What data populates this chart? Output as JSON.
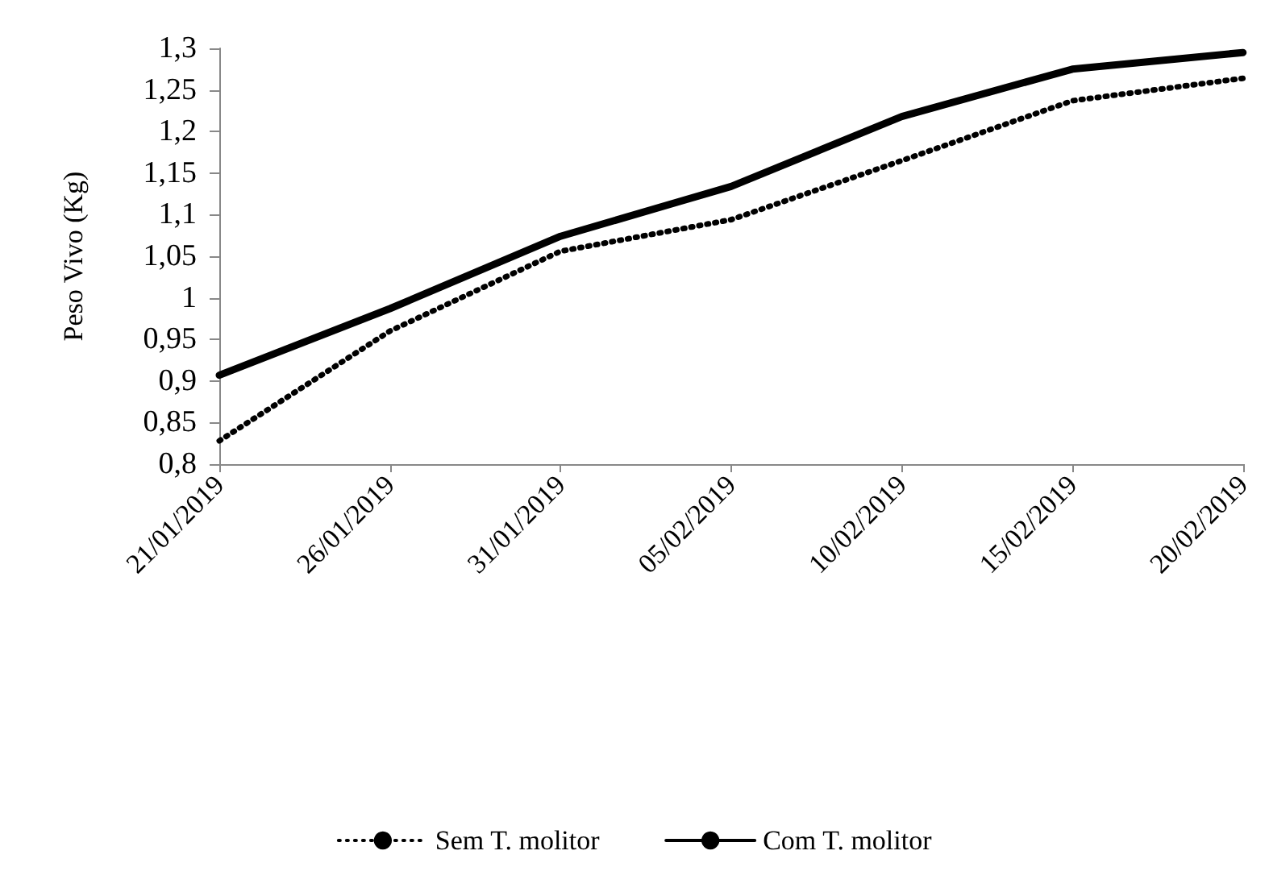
{
  "chart_data": {
    "type": "line",
    "ylabel": "Peso Vivo (Kg)",
    "categories": [
      "21/01/2019",
      "26/01/2019",
      "31/01/2019",
      "05/02/2019",
      "10/02/2019",
      "15/02/2019",
      "20/02/2019"
    ],
    "series": [
      {
        "name": "Sem T. molitor",
        "color": "#000000",
        "line_style": "dotted",
        "values": [
          0.828,
          0.96,
          1.056,
          1.094,
          1.165,
          1.237,
          1.264
        ]
      },
      {
        "name": "Com T. molitor",
        "color": "#000000",
        "line_style": "solid",
        "values": [
          0.907,
          0.987,
          1.074,
          1.134,
          1.218,
          1.275,
          1.295
        ]
      }
    ],
    "ylim": [
      0.8,
      1.3
    ],
    "yticks": [
      {
        "value": 0.8,
        "label": "0,8"
      },
      {
        "value": 0.85,
        "label": "0,85"
      },
      {
        "value": 0.9,
        "label": "0,9"
      },
      {
        "value": 0.95,
        "label": "0,95"
      },
      {
        "value": 1,
        "label": "1"
      },
      {
        "value": 1.05,
        "label": "1,05"
      },
      {
        "value": 1.1,
        "label": "1,1"
      },
      {
        "value": 1.15,
        "label": "1,15"
      },
      {
        "value": 1.2,
        "label": "1,2"
      },
      {
        "value": 1.25,
        "label": "1,25"
      },
      {
        "value": 1.3,
        "label": "1,3"
      }
    ],
    "grid": false,
    "legend": "bottom",
    "marker": "none"
  }
}
